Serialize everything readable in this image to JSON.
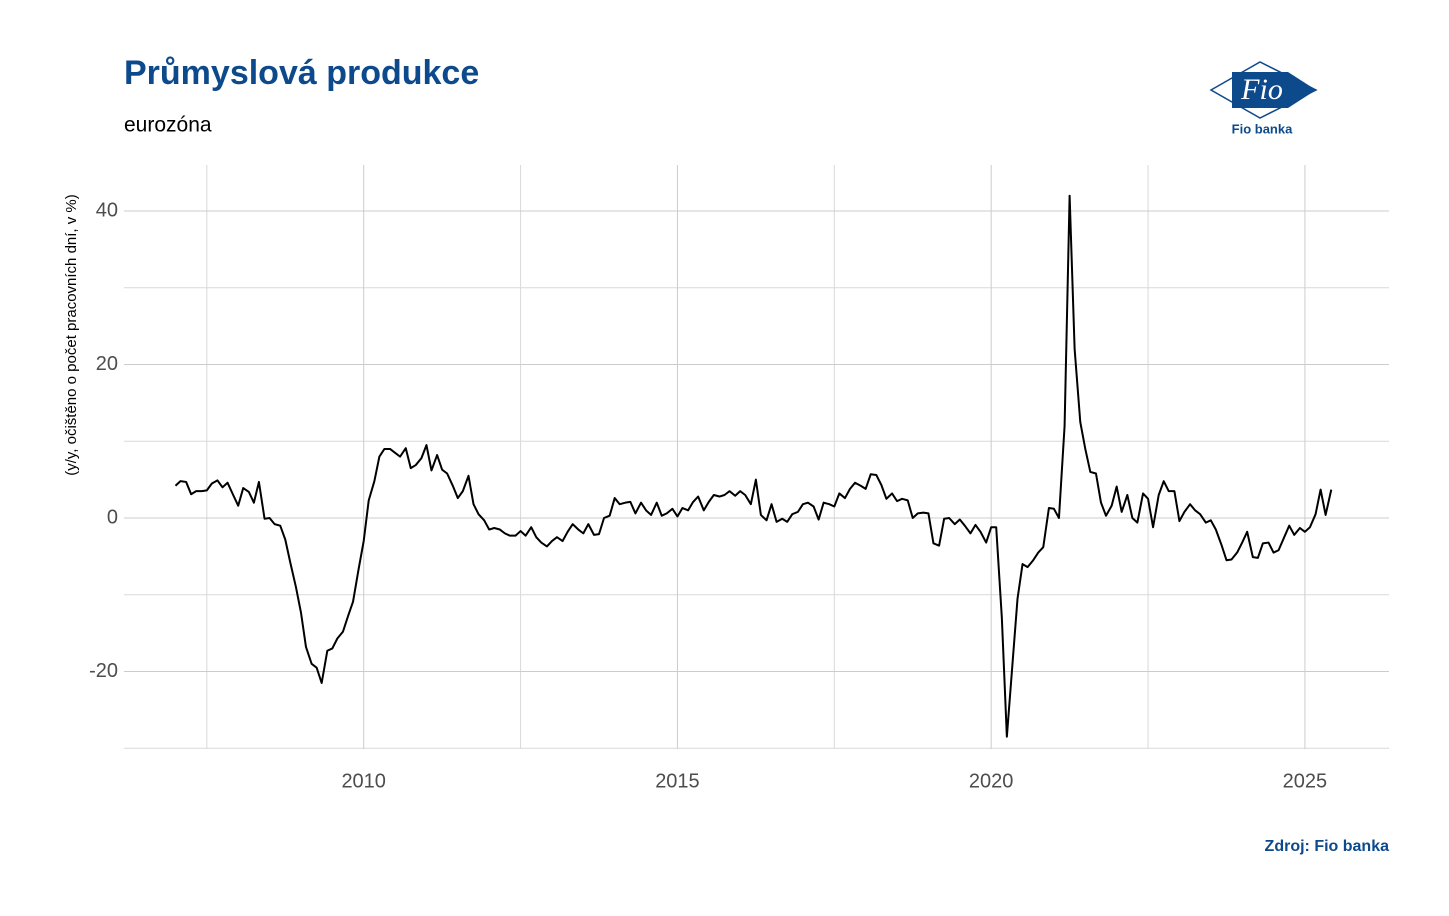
{
  "chart_data": {
    "type": "line",
    "title": "Průmyslová produkce",
    "subtitle": "eurozóna",
    "y_label": "(y/y, očištěno o počet pracovních dní, v %)",
    "source": "Zdroj: Fio banka",
    "logo_text": "Fio",
    "logo_caption": "Fio banka",
    "xlim": [
      2006.18,
      2026.34
    ],
    "xticks": [
      2010,
      2015,
      2020,
      2025
    ],
    "x_minor_grid": [
      2007.5,
      2012.5,
      2017.5,
      2022.5
    ],
    "ylim": [
      -30.1,
      46
    ],
    "yticks": [
      -20,
      0,
      20,
      40
    ],
    "y_minor_grid": [
      -30,
      -10,
      10,
      30
    ],
    "grid": true,
    "series": [
      {
        "color": "#000000",
        "x": [
          2007.0,
          2007.08,
          2007.17,
          2007.25,
          2007.33,
          2007.42,
          2007.5,
          2007.58,
          2007.67,
          2007.75,
          2007.83,
          2007.92,
          2008.0,
          2008.08,
          2008.17,
          2008.25,
          2008.33,
          2008.42,
          2008.5,
          2008.58,
          2008.67,
          2008.75,
          2008.83,
          2008.92,
          2009.0,
          2009.08,
          2009.17,
          2009.25,
          2009.33,
          2009.42,
          2009.5,
          2009.58,
          2009.67,
          2009.75,
          2009.83,
          2009.92,
          2010.0,
          2010.08,
          2010.17,
          2010.25,
          2010.33,
          2010.42,
          2010.5,
          2010.58,
          2010.67,
          2010.75,
          2010.83,
          2010.92,
          2011.0,
          2011.08,
          2011.17,
          2011.25,
          2011.33,
          2011.42,
          2011.5,
          2011.58,
          2011.67,
          2011.75,
          2011.83,
          2011.92,
          2012.0,
          2012.08,
          2012.17,
          2012.25,
          2012.33,
          2012.42,
          2012.5,
          2012.58,
          2012.67,
          2012.75,
          2012.83,
          2012.92,
          2013.0,
          2013.08,
          2013.17,
          2013.25,
          2013.33,
          2013.42,
          2013.5,
          2013.58,
          2013.67,
          2013.75,
          2013.83,
          2013.92,
          2014.0,
          2014.08,
          2014.17,
          2014.25,
          2014.33,
          2014.42,
          2014.5,
          2014.58,
          2014.67,
          2014.75,
          2014.83,
          2014.92,
          2015.0,
          2015.08,
          2015.17,
          2015.25,
          2015.33,
          2015.42,
          2015.5,
          2015.58,
          2015.67,
          2015.75,
          2015.83,
          2015.92,
          2016.0,
          2016.08,
          2016.17,
          2016.25,
          2016.33,
          2016.42,
          2016.5,
          2016.58,
          2016.67,
          2016.75,
          2016.83,
          2016.92,
          2017.0,
          2017.08,
          2017.17,
          2017.25,
          2017.33,
          2017.42,
          2017.5,
          2017.58,
          2017.67,
          2017.75,
          2017.83,
          2017.92,
          2018.0,
          2018.08,
          2018.17,
          2018.25,
          2018.33,
          2018.42,
          2018.5,
          2018.58,
          2018.67,
          2018.75,
          2018.83,
          2018.92,
          2019.0,
          2019.08,
          2019.17,
          2019.25,
          2019.33,
          2019.42,
          2019.5,
          2019.58,
          2019.67,
          2019.75,
          2019.83,
          2019.92,
          2020.0,
          2020.08,
          2020.17,
          2020.25,
          2020.33,
          2020.42,
          2020.5,
          2020.58,
          2020.67,
          2020.75,
          2020.83,
          2020.92,
          2021.0,
          2021.08,
          2021.17,
          2021.25,
          2021.33,
          2021.42,
          2021.5,
          2021.58,
          2021.67,
          2021.75,
          2021.83,
          2021.92,
          2022.0,
          2022.08,
          2022.17,
          2022.25,
          2022.33,
          2022.42,
          2022.5,
          2022.58,
          2022.67,
          2022.75,
          2022.83,
          2022.92,
          2023.0,
          2023.08,
          2023.17,
          2023.25,
          2023.33,
          2023.42,
          2023.5,
          2023.58,
          2023.67,
          2023.75,
          2023.83,
          2023.92,
          2024.0,
          2024.08,
          2024.17,
          2024.25,
          2024.33,
          2024.42,
          2024.5,
          2024.58,
          2024.67,
          2024.75,
          2024.83,
          2024.92,
          2025.0,
          2025.08,
          2025.17,
          2025.25,
          2025.33,
          2025.42
        ],
        "values": [
          4.2,
          4.8,
          4.7,
          3.1,
          3.5,
          3.5,
          3.6,
          4.5,
          4.9,
          4.0,
          4.6,
          3.0,
          1.6,
          3.9,
          3.4,
          2.0,
          4.7,
          -0.1,
          0.0,
          -0.8,
          -1.0,
          -2.8,
          -5.8,
          -9.0,
          -12.3,
          -16.8,
          -19.0,
          -19.5,
          -21.5,
          -17.3,
          -17.0,
          -15.7,
          -14.8,
          -12.8,
          -10.9,
          -6.6,
          -3.0,
          2.3,
          4.8,
          8.0,
          9.0,
          9.0,
          8.5,
          8.0,
          9.1,
          6.5,
          6.9,
          7.8,
          9.5,
          6.2,
          8.2,
          6.3,
          5.8,
          4.2,
          2.6,
          3.5,
          5.5,
          1.8,
          0.5,
          -0.3,
          -1.5,
          -1.3,
          -1.5,
          -2.0,
          -2.3,
          -2.3,
          -1.7,
          -2.3,
          -1.2,
          -2.5,
          -3.2,
          -3.7,
          -3.0,
          -2.5,
          -3.0,
          -1.8,
          -0.8,
          -1.5,
          -2.0,
          -0.8,
          -2.2,
          -2.1,
          0.0,
          0.3,
          2.6,
          1.8,
          2.0,
          2.1,
          0.6,
          2.0,
          1.0,
          0.4,
          2.0,
          0.3,
          0.6,
          1.2,
          0.2,
          1.3,
          1.0,
          2.1,
          2.8,
          1.0,
          2.1,
          3.0,
          2.8,
          3.0,
          3.5,
          2.9,
          3.5,
          3.0,
          1.8,
          5.0,
          0.4,
          -0.3,
          1.8,
          -0.5,
          -0.1,
          -0.5,
          0.5,
          0.8,
          1.8,
          2.0,
          1.5,
          -0.2,
          2.0,
          1.8,
          1.5,
          3.2,
          2.6,
          3.8,
          4.6,
          4.2,
          3.8,
          5.7,
          5.6,
          4.3,
          2.5,
          3.2,
          2.2,
          2.5,
          2.3,
          0.0,
          0.6,
          0.7,
          0.6,
          -3.3,
          -3.6,
          -0.1,
          0.0,
          -0.8,
          -0.2,
          -1.0,
          -2.0,
          -0.9,
          -1.8,
          -3.2,
          -1.2,
          -1.2,
          -13.0,
          -28.5,
          -20.0,
          -10.5,
          -6.0,
          -6.4,
          -5.5,
          -4.5,
          -3.8,
          1.3,
          1.2,
          0.0,
          12.0,
          42.0,
          22.0,
          12.5,
          9.0,
          6.0,
          5.8,
          2.0,
          0.3,
          1.6,
          4.1,
          0.8,
          3.0,
          0.0,
          -0.6,
          3.2,
          2.5,
          -1.2,
          3.0,
          4.8,
          3.5,
          3.5,
          -0.4,
          0.8,
          1.8,
          1.0,
          0.5,
          -0.6,
          -0.3,
          -1.5,
          -3.5,
          -5.5,
          -5.4,
          -4.5,
          -3.2,
          -1.8,
          -5.1,
          -5.2,
          -3.3,
          -3.2,
          -4.5,
          -4.2,
          -2.5,
          -1.0,
          -2.2,
          -1.3,
          -1.8,
          -1.2,
          0.5,
          3.7,
          0.4,
          3.7
        ]
      }
    ]
  }
}
